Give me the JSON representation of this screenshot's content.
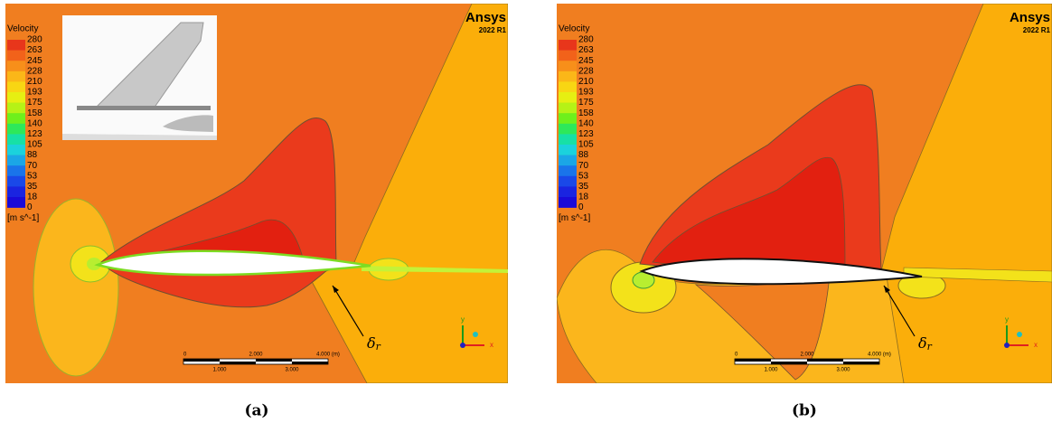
{
  "figure": {
    "panels": [
      {
        "label": "(a)",
        "legend": {
          "title": "Velocity",
          "values": [
            280,
            263,
            245,
            228,
            210,
            193,
            175,
            158,
            140,
            123,
            105,
            88,
            70,
            53,
            35,
            18,
            0
          ],
          "unit": "[m s^-1]"
        },
        "brand": "Ansys",
        "version": "2022 R1",
        "scale": {
          "top": [
            "0",
            "2.000",
            "4.000 (m)"
          ],
          "bottom": [
            "1.000",
            "3.000"
          ]
        },
        "axes": {
          "y": "y",
          "x": "x"
        },
        "annotation": {
          "symbol": "δ",
          "subscript": "r"
        }
      },
      {
        "label": "(b)",
        "legend": {
          "title": "Velocity",
          "values": [
            280,
            263,
            245,
            228,
            210,
            193,
            175,
            158,
            140,
            123,
            105,
            88,
            70,
            53,
            35,
            18,
            0
          ],
          "unit": "[m s^-1]"
        },
        "brand": "Ansys",
        "version": "2022 R1",
        "scale": {
          "top": [
            "0",
            "2.000",
            "4.000 (m)"
          ],
          "bottom": [
            "1.000",
            "3.000"
          ]
        },
        "axes": {
          "y": "y",
          "x": "x"
        },
        "annotation": {
          "symbol": "δ",
          "subscript": "r"
        }
      }
    ]
  }
}
